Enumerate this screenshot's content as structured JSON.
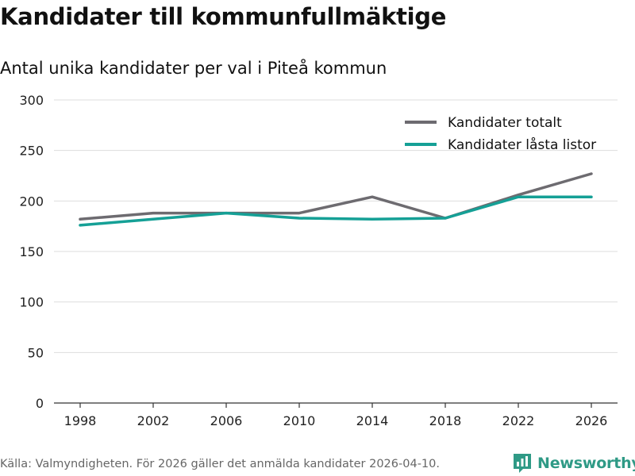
{
  "colors": {
    "series_total": "#6d6b70",
    "series_locked": "#15a096",
    "grid": "#dddddd",
    "brand": "#2f9a86"
  },
  "footer": {
    "source": "Källa: Valmyndigheten. För 2026 gäller det anmälda kandidater 2026-04-10.",
    "brand": "Newsworthy",
    "brand_icon": "newsworthy-logo-icon"
  },
  "chart_data": {
    "type": "line",
    "title": "Kandidater till kommunfullmäktige",
    "subtitle": "Antal unika kandidater per val i Piteå kommun",
    "xlabel": "",
    "ylabel": "",
    "x": [
      "1998",
      "2002",
      "2006",
      "2010",
      "2014",
      "2018",
      "2022",
      "2026"
    ],
    "ylim": [
      0,
      300
    ],
    "yticks": [
      0,
      50,
      100,
      150,
      200,
      250,
      300
    ],
    "grid": true,
    "legend_position": "top-right",
    "series": [
      {
        "name": "Kandidater totalt",
        "color": "#6d6b70",
        "values": [
          182,
          188,
          188,
          188,
          204,
          183,
          206,
          227
        ]
      },
      {
        "name": "Kandidater låsta listor",
        "color": "#15a096",
        "values": [
          176,
          182,
          188,
          183,
          182,
          183,
          204,
          204
        ]
      }
    ]
  }
}
